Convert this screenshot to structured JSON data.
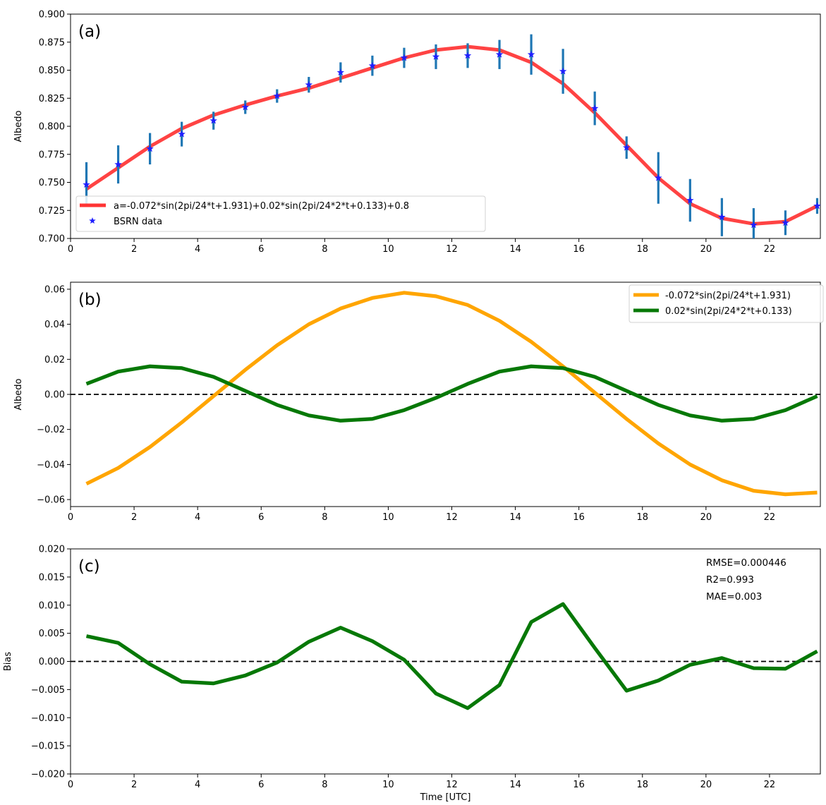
{
  "chart_data": [
    {
      "type": "line",
      "panel_label": "(a)",
      "ylabel": "Albedo",
      "xlabel": "",
      "xlim": [
        0,
        23.6
      ],
      "ylim": [
        0.7,
        0.9
      ],
      "xticks": [
        0,
        2,
        4,
        6,
        8,
        10,
        12,
        14,
        16,
        18,
        20,
        22
      ],
      "xtick_labels": [
        "0",
        "2",
        "4",
        "6",
        "8",
        "10",
        "12",
        "14",
        "16",
        "18",
        "20",
        "22"
      ],
      "yticks": [
        0.7,
        0.725,
        0.75,
        0.775,
        0.8,
        0.825,
        0.85,
        0.875,
        0.9
      ],
      "ytick_labels": [
        "0.700",
        "0.725",
        "0.750",
        "0.775",
        "0.800",
        "0.825",
        "0.850",
        "0.875",
        "0.900"
      ],
      "legend_position": "lower-left",
      "x": [
        0.5,
        1.5,
        2.5,
        3.5,
        4.5,
        5.5,
        6.5,
        7.5,
        8.5,
        9.5,
        10.5,
        11.5,
        12.5,
        13.5,
        14.5,
        15.5,
        16.5,
        17.5,
        18.5,
        19.5,
        20.5,
        21.5,
        22.5,
        23.5
      ],
      "series": [
        {
          "name": "a=-0.072*sin(2pi/24*t+1.931)+0.02*sin(2pi/24*2*t+0.133)+0.8",
          "kind": "line",
          "color": "#ff3333",
          "values": [
            0.744,
            0.763,
            0.782,
            0.798,
            0.81,
            0.819,
            0.827,
            0.834,
            0.843,
            0.852,
            0.861,
            0.868,
            0.871,
            0.868,
            0.857,
            0.838,
            0.812,
            0.783,
            0.754,
            0.731,
            0.718,
            0.713,
            0.715,
            0.729
          ]
        },
        {
          "name": "BSRN data",
          "kind": "scatter_errorbar",
          "color": "#1f1fff",
          "errorbar_color": "#1f77b4",
          "values": [
            0.748,
            0.766,
            0.78,
            0.793,
            0.805,
            0.817,
            0.827,
            0.837,
            0.848,
            0.854,
            0.861,
            0.862,
            0.863,
            0.864,
            0.864,
            0.849,
            0.816,
            0.781,
            0.754,
            0.734,
            0.719,
            0.712,
            0.714,
            0.729
          ],
          "errors": [
            0.02,
            0.017,
            0.014,
            0.011,
            0.008,
            0.006,
            0.006,
            0.007,
            0.009,
            0.009,
            0.009,
            0.011,
            0.011,
            0.013,
            0.018,
            0.02,
            0.015,
            0.01,
            0.023,
            0.019,
            0.017,
            0.015,
            0.011,
            0.007
          ]
        }
      ]
    },
    {
      "type": "line",
      "panel_label": "(b)",
      "ylabel": "Albedo",
      "xlabel": "",
      "xlim": [
        0,
        23.6
      ],
      "ylim": [
        -0.064,
        0.064
      ],
      "xticks": [
        0,
        2,
        4,
        6,
        8,
        10,
        12,
        14,
        16,
        18,
        20,
        22
      ],
      "xtick_labels": [
        "0",
        "2",
        "4",
        "6",
        "8",
        "10",
        "12",
        "14",
        "16",
        "18",
        "20",
        "22"
      ],
      "yticks": [
        -0.06,
        -0.04,
        -0.02,
        0.0,
        0.02,
        0.04,
        0.06
      ],
      "ytick_labels": [
        "−0.06",
        "−0.04",
        "−0.02",
        "0.00",
        "0.02",
        "0.04",
        "0.06"
      ],
      "reference_line": 0,
      "legend_position": "upper-right",
      "x": [
        0.5,
        1.5,
        2.5,
        3.5,
        4.5,
        5.5,
        6.5,
        7.5,
        8.5,
        9.5,
        10.5,
        11.5,
        12.5,
        13.5,
        14.5,
        15.5,
        16.5,
        17.5,
        18.5,
        19.5,
        20.5,
        21.5,
        22.5,
        23.5
      ],
      "series": [
        {
          "name": "-0.072*sin(2pi/24*t+1.931)",
          "color": "#ffa500",
          "values": [
            -0.051,
            -0.042,
            -0.03,
            -0.016,
            -0.001,
            0.014,
            0.028,
            0.04,
            0.049,
            0.055,
            0.058,
            0.056,
            0.051,
            0.042,
            0.03,
            0.016,
            0.001,
            -0.014,
            -0.028,
            -0.04,
            -0.049,
            -0.055,
            -0.057,
            -0.056
          ]
        },
        {
          "name": "0.02*sin(2pi/24*2*t+0.133)",
          "color": "#067806",
          "values": [
            0.006,
            0.013,
            0.016,
            0.015,
            0.01,
            0.002,
            -0.006,
            -0.012,
            -0.015,
            -0.014,
            -0.009,
            -0.002,
            0.006,
            0.013,
            0.016,
            0.015,
            0.01,
            0.002,
            -0.006,
            -0.012,
            -0.015,
            -0.014,
            -0.009,
            -0.001
          ]
        }
      ]
    },
    {
      "type": "line",
      "panel_label": "(c)",
      "ylabel": "Bias",
      "xlabel": "Time [UTC]",
      "xlim": [
        0,
        23.6
      ],
      "ylim": [
        -0.02,
        0.02
      ],
      "xticks": [
        0,
        2,
        4,
        6,
        8,
        10,
        12,
        14,
        16,
        18,
        20,
        22
      ],
      "xtick_labels": [
        "0",
        "2",
        "4",
        "6",
        "8",
        "10",
        "12",
        "14",
        "16",
        "18",
        "20",
        "22"
      ],
      "yticks": [
        -0.02,
        -0.015,
        -0.01,
        -0.005,
        0.0,
        0.005,
        0.01,
        0.015,
        0.02
      ],
      "ytick_labels": [
        "−0.020",
        "−0.015",
        "−0.010",
        "−0.005",
        "0.000",
        "0.005",
        "0.010",
        "0.015",
        "0.020"
      ],
      "reference_line": 0,
      "annotations": [
        "RMSE=0.000446",
        "R2=0.993",
        "MAE=0.003"
      ],
      "x": [
        0.5,
        1.5,
        2.5,
        3.5,
        4.5,
        5.5,
        6.5,
        7.5,
        8.5,
        9.5,
        10.5,
        11.5,
        12.5,
        13.5,
        14.5,
        15.5,
        16.5,
        17.5,
        18.5,
        19.5,
        20.5,
        21.5,
        22.5,
        23.5
      ],
      "series": [
        {
          "color": "#067806",
          "values": [
            0.0045,
            0.0033,
            -0.0005,
            -0.0036,
            -0.0039,
            -0.0025,
            -0.0002,
            0.0035,
            0.006,
            0.0036,
            0.0003,
            -0.0057,
            -0.0083,
            -0.0042,
            0.007,
            0.0102,
            0.0024,
            -0.0052,
            -0.0034,
            -0.0006,
            0.0006,
            -0.0012,
            -0.0013,
            0.0018
          ]
        }
      ]
    }
  ]
}
